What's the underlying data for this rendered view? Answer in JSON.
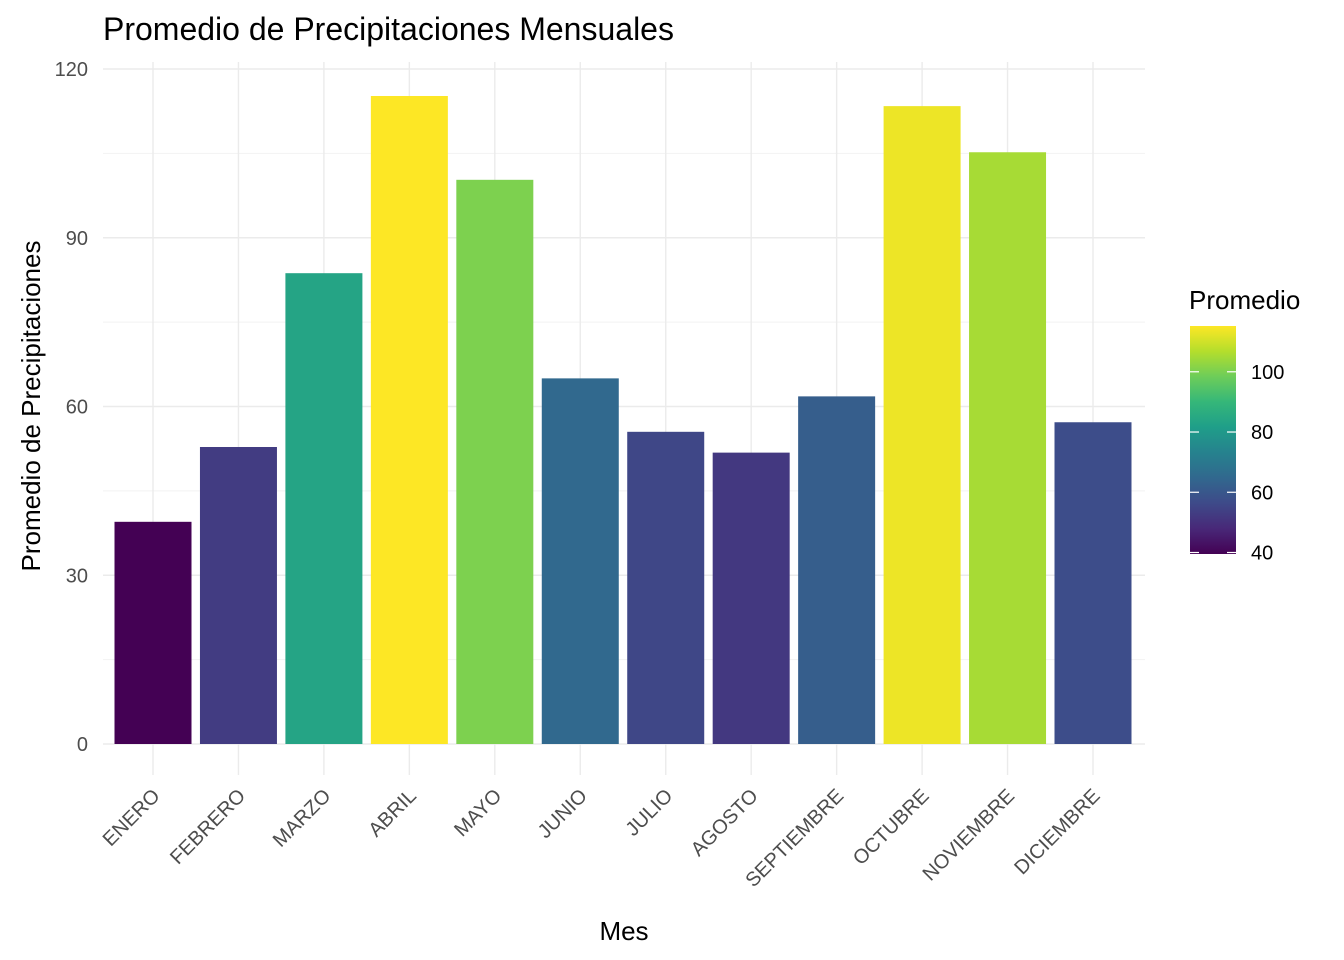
{
  "chart_data": {
    "type": "bar",
    "title": "Promedio de Precipitaciones Mensuales",
    "xlabel": "Mes",
    "ylabel": "Promedio de Precipitaciones",
    "categories": [
      "ENERO",
      "FEBRERO",
      "MARZO",
      "ABRIL",
      "MAYO",
      "JUNIO",
      "JULIO",
      "AGOSTO",
      "SEPTIEMBRE",
      "OCTUBRE",
      "NOVIEMBRE",
      "DICIEMBRE"
    ],
    "values": [
      39.5,
      52.8,
      83.7,
      115.2,
      100.3,
      65.0,
      55.5,
      51.8,
      61.8,
      113.4,
      105.2,
      57.2
    ],
    "ylim": [
      0,
      120
    ],
    "yticks": [
      "0",
      "30",
      "60",
      "90",
      "120"
    ],
    "grid": true,
    "legend": {
      "title": "Promedio",
      "placement": "right",
      "type": "colorbar",
      "range": [
        39.5,
        115.2
      ],
      "ticks": [
        "40",
        "60",
        "80",
        "100"
      ],
      "palette": "viridis"
    }
  }
}
